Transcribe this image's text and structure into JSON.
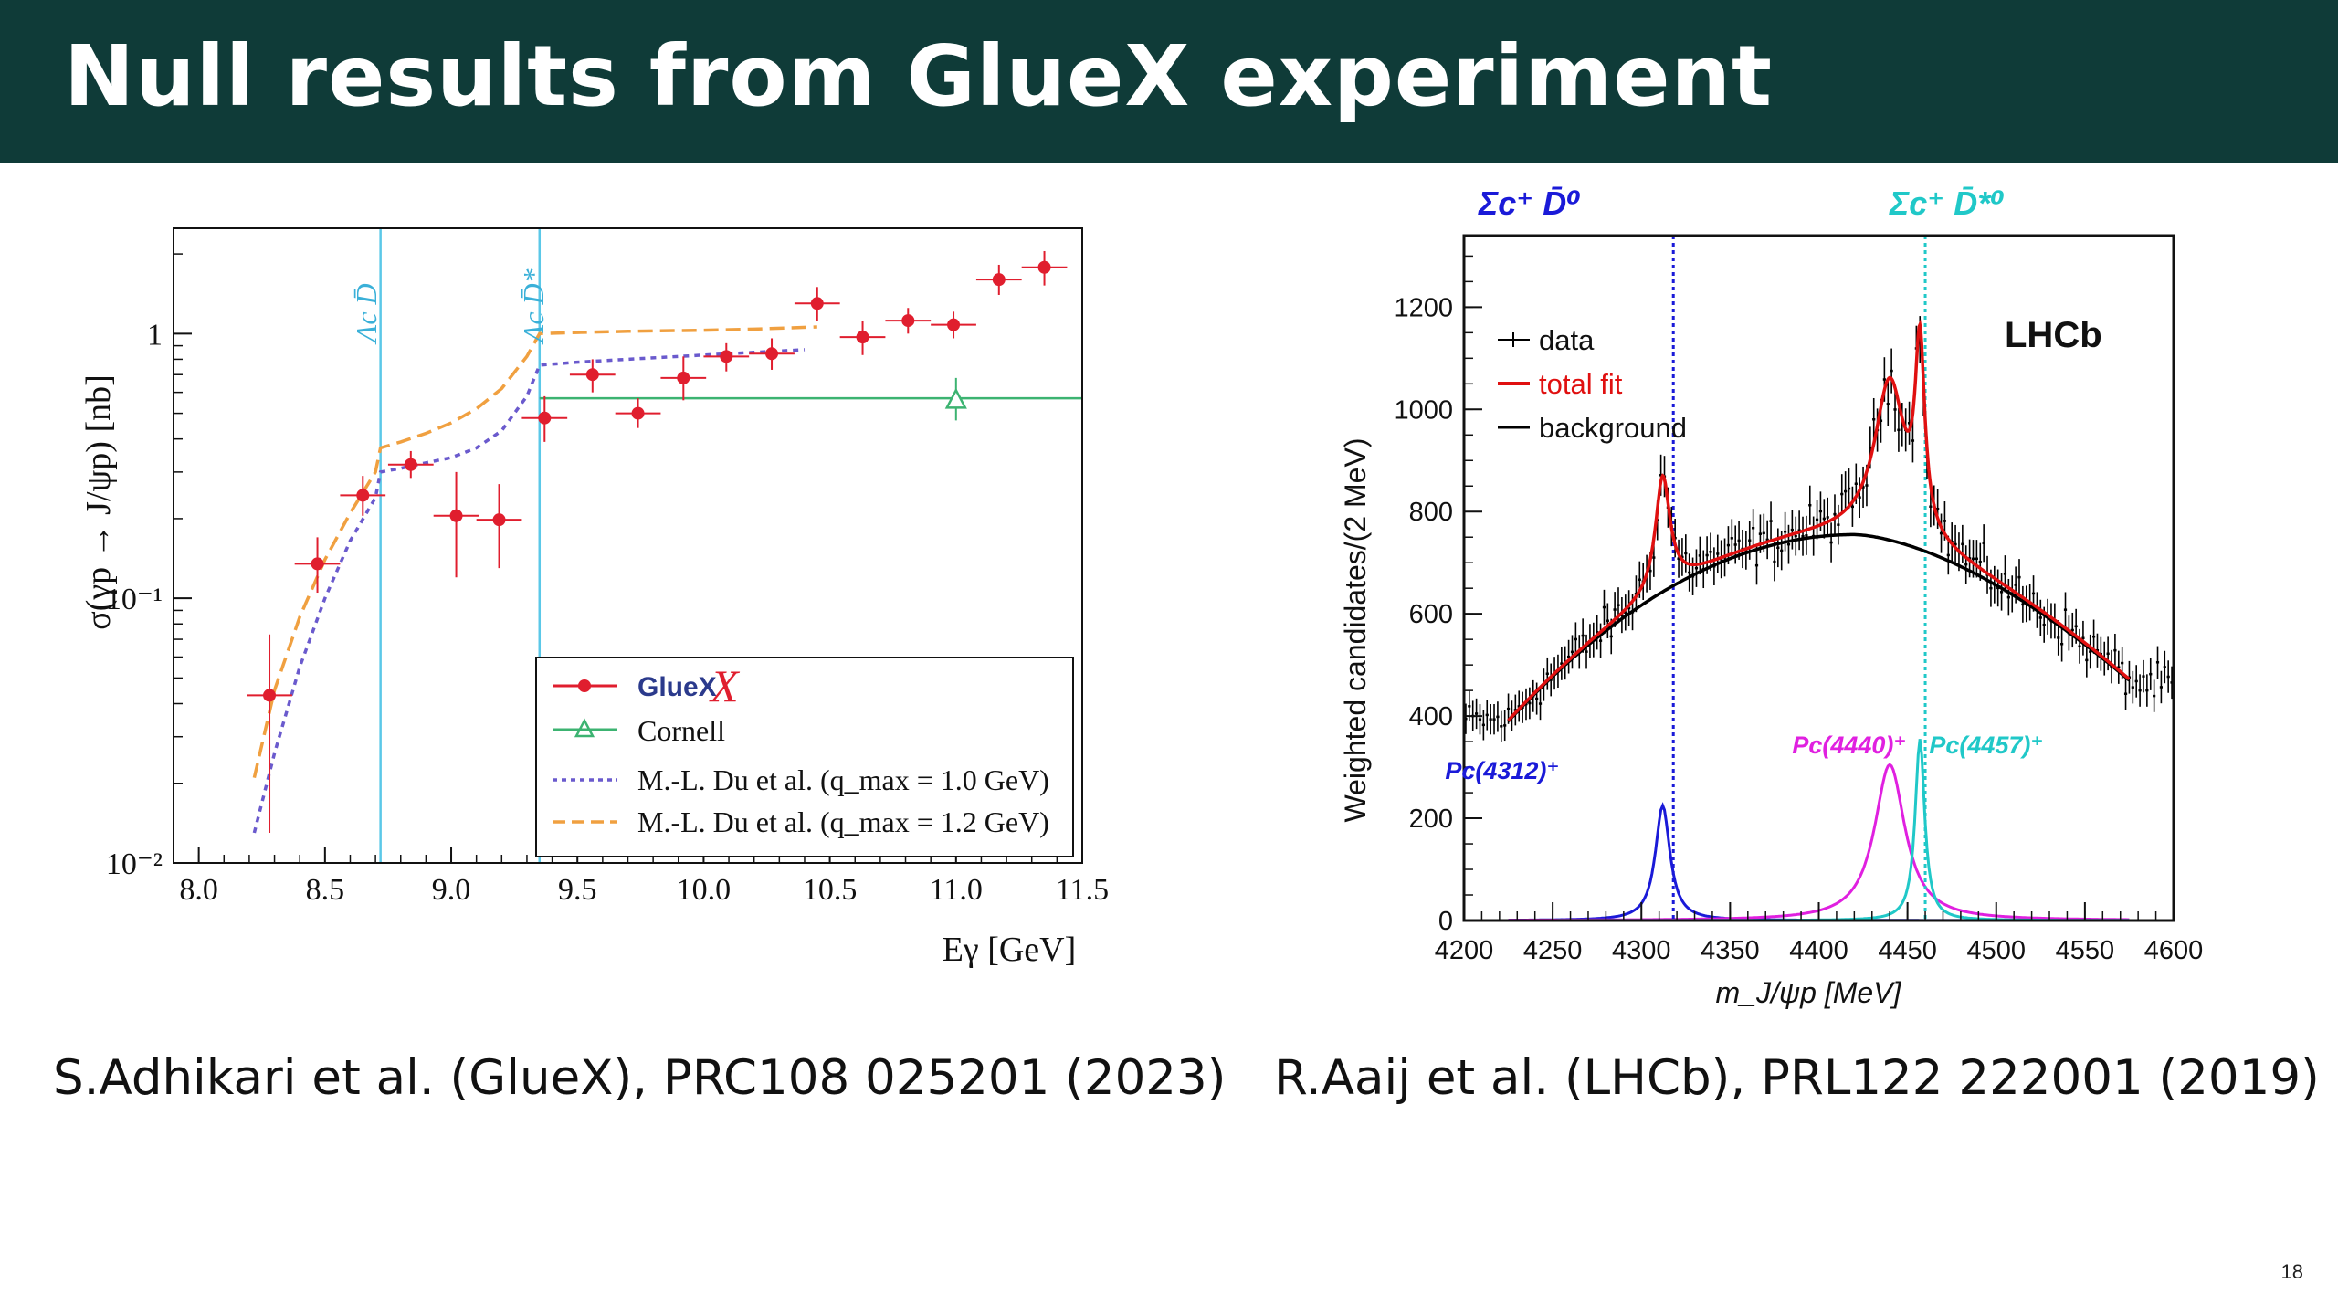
{
  "slide": {
    "title": "Null results from GlueX experiment",
    "page_number": "18",
    "captions": {
      "left": "S.Adhikari et al. (GlueX), PRC108 025201 (2023)",
      "right": "R.Aaij et al. (LHCb), PRL122 222001 (2019)"
    }
  },
  "colors": {
    "title_bar": "#0f3b38",
    "gluex_points": "#e01e2e",
    "cornell": "#3cb371",
    "du_1p0": "#6a5acd",
    "du_1p2": "#f0a040",
    "threshold_lines_left": "#5bc8e8",
    "lhcb_data": "#000000",
    "lhcb_fit": "#e01010",
    "pc4312": "#1a1ad8",
    "pc4440": "#e020e0",
    "pc4457": "#20c8c8"
  },
  "chart_data": [
    {
      "type": "scatter",
      "panel": "left",
      "ylabel": "σ(γp → J/ψp) [nb]",
      "xlabel": "Eγ [GeV]",
      "xlim": [
        7.9,
        11.5
      ],
      "ylim": [
        0.01,
        2.5
      ],
      "yscale": "log",
      "xticks": [
        "8.0",
        "8.5",
        "9.0",
        "9.5",
        "10.0",
        "10.5",
        "11.0",
        "11.5"
      ],
      "yticks": [
        "10⁻²",
        "10⁻¹",
        "1"
      ],
      "threshold_labels": [
        "Λc D̄",
        "Λc D̄*"
      ],
      "thresholds_x": [
        8.72,
        9.35
      ],
      "legend": {
        "placement": "bottom-right",
        "entries": [
          "GlueX",
          "Cornell",
          "M.-L. Du et al. (q_max = 1.0 GeV)",
          "M.-L. Du et al. (q_max = 1.2 GeV)"
        ]
      },
      "series": [
        {
          "name": "GlueX",
          "points": [
            {
              "x": 8.28,
              "y": 0.043,
              "xerr": 0.09,
              "ylo": 0.013,
              "yhi": 0.073
            },
            {
              "x": 8.47,
              "y": 0.135,
              "xerr": 0.09,
              "ylo": 0.105,
              "yhi": 0.17
            },
            {
              "x": 8.65,
              "y": 0.245,
              "xerr": 0.09,
              "ylo": 0.205,
              "yhi": 0.29
            },
            {
              "x": 8.84,
              "y": 0.32,
              "xerr": 0.09,
              "ylo": 0.285,
              "yhi": 0.36
            },
            {
              "x": 9.02,
              "y": 0.205,
              "xerr": 0.09,
              "ylo": 0.12,
              "yhi": 0.3
            },
            {
              "x": 9.19,
              "y": 0.198,
              "xerr": 0.09,
              "ylo": 0.13,
              "yhi": 0.27
            },
            {
              "x": 9.37,
              "y": 0.48,
              "xerr": 0.09,
              "ylo": 0.39,
              "yhi": 0.58
            },
            {
              "x": 9.56,
              "y": 0.7,
              "xerr": 0.09,
              "ylo": 0.6,
              "yhi": 0.8
            },
            {
              "x": 9.74,
              "y": 0.5,
              "xerr": 0.09,
              "ylo": 0.44,
              "yhi": 0.57
            },
            {
              "x": 9.92,
              "y": 0.68,
              "xerr": 0.09,
              "ylo": 0.56,
              "yhi": 0.82
            },
            {
              "x": 10.09,
              "y": 0.82,
              "xerr": 0.09,
              "ylo": 0.72,
              "yhi": 0.92
            },
            {
              "x": 10.27,
              "y": 0.84,
              "xerr": 0.09,
              "ylo": 0.73,
              "yhi": 0.96
            },
            {
              "x": 10.45,
              "y": 1.3,
              "xerr": 0.09,
              "ylo": 1.12,
              "yhi": 1.5
            },
            {
              "x": 10.63,
              "y": 0.97,
              "xerr": 0.09,
              "ylo": 0.83,
              "yhi": 1.12
            },
            {
              "x": 10.81,
              "y": 1.12,
              "xerr": 0.09,
              "ylo": 1.0,
              "yhi": 1.25
            },
            {
              "x": 10.99,
              "y": 1.08,
              "xerr": 0.09,
              "ylo": 0.96,
              "yhi": 1.21
            },
            {
              "x": 11.17,
              "y": 1.6,
              "xerr": 0.09,
              "ylo": 1.4,
              "yhi": 1.82
            },
            {
              "x": 11.35,
              "y": 1.78,
              "xerr": 0.09,
              "ylo": 1.52,
              "yhi": 2.05
            }
          ]
        },
        {
          "name": "Cornell",
          "x": [
            9.35,
            11.5
          ],
          "y": [
            0.57,
            0.57
          ],
          "marker_point": {
            "x": 11.0,
            "y": 0.56,
            "ylo": 0.47,
            "yhi": 0.68
          }
        },
        {
          "name": "M.-L. Du et al. (q_max = 1.0 GeV)",
          "x": [
            8.22,
            8.3,
            8.4,
            8.5,
            8.6,
            8.7,
            8.72,
            8.8,
            8.9,
            9.0,
            9.1,
            9.2,
            9.3,
            9.35,
            9.5,
            9.7,
            10.0,
            10.2,
            10.4
          ],
          "y": [
            0.013,
            0.026,
            0.055,
            0.1,
            0.165,
            0.24,
            0.3,
            0.31,
            0.325,
            0.34,
            0.37,
            0.43,
            0.58,
            0.76,
            0.78,
            0.8,
            0.83,
            0.85,
            0.87
          ]
        },
        {
          "name": "M.-L. Du et al. (q_max = 1.2 GeV)",
          "x": [
            8.22,
            8.3,
            8.4,
            8.5,
            8.6,
            8.7,
            8.72,
            8.8,
            8.9,
            9.0,
            9.1,
            9.2,
            9.3,
            9.35,
            9.5,
            9.7,
            10.0,
            10.2,
            10.45
          ],
          "y": [
            0.021,
            0.045,
            0.085,
            0.14,
            0.21,
            0.3,
            0.37,
            0.39,
            0.42,
            0.46,
            0.52,
            0.62,
            0.82,
            1.0,
            1.01,
            1.02,
            1.03,
            1.04,
            1.06
          ]
        }
      ]
    },
    {
      "type": "line",
      "panel": "right",
      "ylabel": "Weighted candidates/(2 MeV)",
      "xlabel": "m_J/ψp [MeV]",
      "xlim": [
        4200,
        4600
      ],
      "ylim": [
        0,
        1340
      ],
      "xticks": [
        "4200",
        "4250",
        "4300",
        "4350",
        "4400",
        "4450",
        "4500",
        "4550",
        "4600"
      ],
      "yticks": [
        "0",
        "200",
        "400",
        "600",
        "800",
        "1000",
        "1200"
      ],
      "experiment_label": "LHCb",
      "threshold_labels": [
        "Σc⁺ D̄⁰",
        "Σc⁺ D̄*⁰"
      ],
      "thresholds_x": [
        4318,
        4460
      ],
      "legend": {
        "placement": "top-left",
        "entries": [
          "data",
          "total fit",
          "background"
        ]
      },
      "resonances": [
        {
          "name": "Pc(4312)⁺",
          "mass": 4312,
          "width": 10,
          "peak": 225
        },
        {
          "name": "Pc(4440)⁺",
          "mass": 4440,
          "width": 21,
          "peak": 305
        },
        {
          "name": "Pc(4457)⁺",
          "mass": 4457,
          "width": 6.5,
          "peak": 355
        }
      ],
      "background": {
        "x0": 4225,
        "y_start": 390,
        "peak_x": 4420,
        "peak_y": 755,
        "x_end": 4575,
        "y_end": 470
      },
      "data_range": [
        4200,
        4600
      ]
    }
  ]
}
